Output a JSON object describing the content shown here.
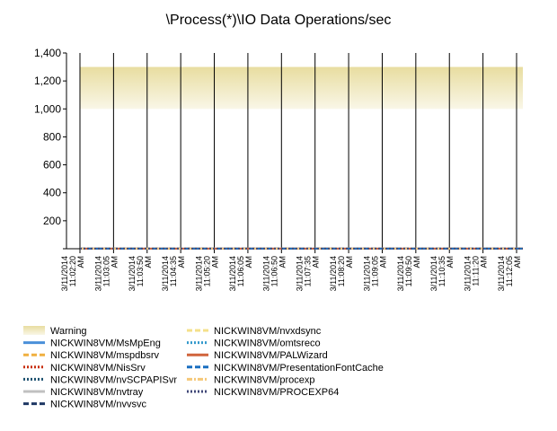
{
  "chart_data": {
    "type": "line",
    "title": "\\Process(*)\\IO Data Operations/sec",
    "xlabel": "",
    "ylabel": "",
    "ylim": [
      0,
      1400
    ],
    "y_ticks": [
      "1,400",
      "1,200",
      "1,000",
      "800",
      "600",
      "400",
      "200"
    ],
    "y_tick_values": [
      1400,
      1200,
      1000,
      800,
      600,
      400,
      200
    ],
    "x_tick_labels": [
      [
        "3/11/2014",
        "11:02:20",
        "AM"
      ],
      [
        "3/11/2014",
        "11:03:05",
        "AM"
      ],
      [
        "3/11/2014",
        "11:03:50",
        "AM"
      ],
      [
        "3/11/2014",
        "11:04:35",
        "AM"
      ],
      [
        "3/11/2014",
        "11:05:20",
        "AM"
      ],
      [
        "3/11/2014",
        "11:06:05",
        "AM"
      ],
      [
        "3/11/2014",
        "11:06:50",
        "AM"
      ],
      [
        "3/11/2014",
        "11:07:35",
        "AM"
      ],
      [
        "3/11/2014",
        "11:08:20",
        "AM"
      ],
      [
        "3/11/2014",
        "11:09:05",
        "AM"
      ],
      [
        "3/11/2014",
        "11:09:50",
        "AM"
      ],
      [
        "3/11/2014",
        "11:10:35",
        "AM"
      ],
      [
        "3/11/2014",
        "11:11:20",
        "AM"
      ],
      [
        "3/11/2014",
        "11:12:05",
        "AM"
      ]
    ],
    "warning_band": {
      "name": "Warning",
      "from": 1000,
      "to": 1300,
      "color": "#e8dda0"
    },
    "series": [
      {
        "name": "NICKWIN8VM/MsMpEng",
        "color": "#4a90d9",
        "dash": "solid",
        "value": 1
      },
      {
        "name": "NICKWIN8VM/mspdbsrv",
        "color": "#f0b040",
        "dash": "dash",
        "value": 1
      },
      {
        "name": "NICKWIN8VM/NisSrv",
        "color": "#c83010",
        "dash": "dot",
        "value": 1
      },
      {
        "name": "NICKWIN8VM/nvSCPAPISvr",
        "color": "#1a4f6e",
        "dash": "dot",
        "value": 1
      },
      {
        "name": "NICKWIN8VM/nvtray",
        "color": "#c0c0c0",
        "dash": "solid",
        "value": 1
      },
      {
        "name": "NICKWIN8VM/nvvsvc",
        "color": "#1f3864",
        "dash": "dash",
        "value": 1
      },
      {
        "name": "NICKWIN8VM/nvxdsync",
        "color": "#f5e08a",
        "dash": "dash",
        "value": 1
      },
      {
        "name": "NICKWIN8VM/omtsreco",
        "color": "#3399cc",
        "dash": "dot",
        "value": 1
      },
      {
        "name": "NICKWIN8VM/PALWizard",
        "color": "#d0643c",
        "dash": "solid",
        "value": 1
      },
      {
        "name": "NICKWIN8VM/PresentationFontCache",
        "color": "#1a6fc0",
        "dash": "dash",
        "value": 1
      },
      {
        "name": "NICKWIN8VM/procexp",
        "color": "#f5c878",
        "dash": "dashdot",
        "value": 1
      },
      {
        "name": "NICKWIN8VM/PROCEXP64",
        "color": "#404878",
        "dash": "dot",
        "value": 1
      }
    ],
    "legend_placement": "bottom"
  }
}
